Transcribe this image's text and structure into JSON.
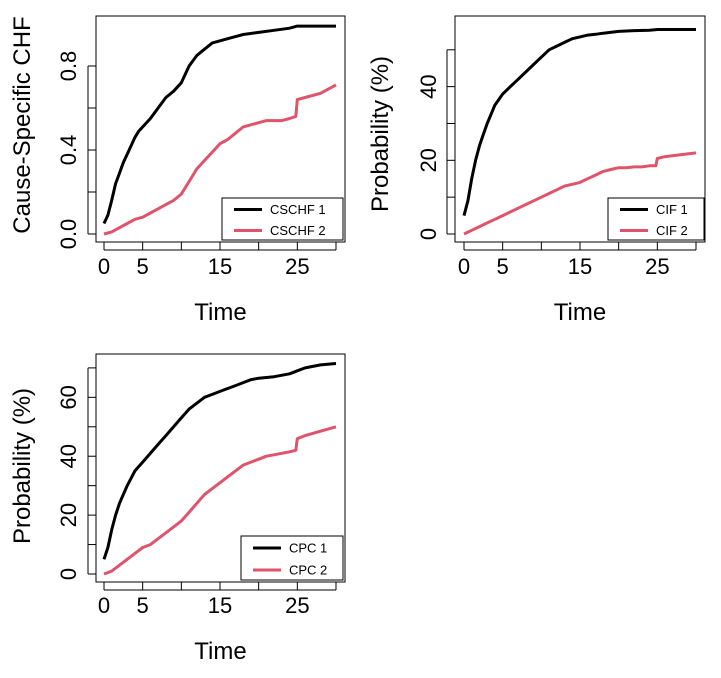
{
  "chart_data": [
    {
      "type": "line",
      "ylabel": "Cause-Specific CHF",
      "xlabel": "Time",
      "xlim": [
        0,
        30
      ],
      "ylim": [
        0,
        1
      ],
      "xticks": [
        0,
        5,
        10,
        15,
        20,
        25,
        30
      ],
      "xtick_labels": [
        "0",
        "5",
        "",
        "15",
        "",
        "25",
        ""
      ],
      "yticks": [
        0,
        0.2,
        0.4,
        0.6,
        0.8
      ],
      "ytick_labels": [
        "0.0",
        "",
        "0.4",
        "",
        "0.8"
      ],
      "legend_position": "bottom-right",
      "series": [
        {
          "name": "CSCHF 1",
          "color": "#000000",
          "x": [
            0,
            0.5,
            1,
            1.5,
            2,
            2.5,
            3,
            3.5,
            4,
            4.5,
            5,
            6,
            7,
            8,
            9,
            10,
            10.5,
            11,
            12,
            13,
            14,
            15,
            16,
            17,
            18,
            20,
            22,
            24,
            25,
            26,
            28,
            30
          ],
          "y": [
            0.05,
            0.09,
            0.16,
            0.24,
            0.29,
            0.34,
            0.38,
            0.42,
            0.46,
            0.49,
            0.51,
            0.55,
            0.6,
            0.65,
            0.68,
            0.72,
            0.76,
            0.8,
            0.85,
            0.88,
            0.91,
            0.92,
            0.93,
            0.94,
            0.95,
            0.96,
            0.97,
            0.98,
            0.99,
            0.99,
            0.99,
            0.99
          ]
        },
        {
          "name": "CSCHF 2",
          "color": "#DF536B",
          "x": [
            0,
            1,
            2,
            3,
            4,
            5,
            6,
            7,
            8,
            9,
            10,
            11,
            12,
            13,
            14,
            15,
            16,
            17,
            18,
            19,
            20,
            21,
            22,
            23,
            24,
            24.8,
            25,
            26,
            28,
            30
          ],
          "y": [
            0.0,
            0.01,
            0.03,
            0.05,
            0.07,
            0.08,
            0.1,
            0.12,
            0.14,
            0.16,
            0.19,
            0.25,
            0.31,
            0.35,
            0.39,
            0.43,
            0.45,
            0.48,
            0.51,
            0.52,
            0.53,
            0.54,
            0.54,
            0.54,
            0.55,
            0.56,
            0.64,
            0.65,
            0.67,
            0.71
          ]
        }
      ]
    },
    {
      "type": "line",
      "ylabel": "Probability (%)",
      "xlabel": "Time",
      "xlim": [
        0,
        30
      ],
      "ylim": [
        0,
        57
      ],
      "xticks": [
        0,
        5,
        10,
        15,
        20,
        25,
        30
      ],
      "xtick_labels": [
        "0",
        "5",
        "",
        "15",
        "",
        "25",
        ""
      ],
      "yticks": [
        0,
        10,
        20,
        30,
        40,
        50
      ],
      "ytick_labels": [
        "0",
        "",
        "20",
        "",
        "40",
        ""
      ],
      "legend_position": "bottom-right",
      "series": [
        {
          "name": "CIF 1",
          "color": "#000000",
          "x": [
            0,
            0.5,
            1,
            1.5,
            2,
            2.5,
            3,
            4,
            5,
            6,
            7,
            8,
            9,
            10,
            11,
            12,
            13,
            14,
            15,
            16,
            17,
            18,
            20,
            22,
            24,
            25,
            26,
            28,
            30
          ],
          "y": [
            5,
            9,
            15,
            20,
            24,
            27,
            30,
            35,
            38,
            40,
            42,
            44,
            46,
            48,
            50,
            51,
            52,
            53,
            53.5,
            54,
            54.2,
            54.5,
            55,
            55.2,
            55.3,
            55.5,
            55.5,
            55.5,
            55.5
          ]
        },
        {
          "name": "CIF 2",
          "color": "#DF536B",
          "x": [
            0,
            1,
            2,
            3,
            4,
            5,
            6,
            7,
            8,
            9,
            10,
            11,
            12,
            13,
            14,
            15,
            16,
            17,
            18,
            19,
            20,
            21,
            22,
            23,
            24,
            24.8,
            25,
            26,
            28,
            30
          ],
          "y": [
            0,
            1,
            2,
            3,
            4,
            5,
            6,
            7,
            8,
            9,
            10,
            11,
            12,
            13,
            13.5,
            14,
            15,
            16,
            17,
            17.5,
            18,
            18,
            18.2,
            18.2,
            18.5,
            18.5,
            20.5,
            21,
            21.5,
            22
          ]
        }
      ]
    },
    {
      "type": "line",
      "ylabel": "Probability (%)",
      "xlabel": "Time",
      "xlim": [
        0,
        30
      ],
      "ylim": [
        0,
        72
      ],
      "xticks": [
        0,
        5,
        10,
        15,
        20,
        25,
        30
      ],
      "xtick_labels": [
        "0",
        "5",
        "",
        "15",
        "",
        "25",
        ""
      ],
      "yticks": [
        0,
        10,
        20,
        30,
        40,
        50,
        60,
        70
      ],
      "ytick_labels": [
        "0",
        "",
        "20",
        "",
        "40",
        "",
        "60",
        ""
      ],
      "legend_position": "bottom-right",
      "series": [
        {
          "name": "CPC 1",
          "color": "#000000",
          "x": [
            0,
            0.5,
            1,
            1.5,
            2,
            2.5,
            3,
            4,
            5,
            6,
            7,
            8,
            9,
            10,
            11,
            12,
            13,
            14,
            15,
            16,
            17,
            18,
            19,
            20,
            22,
            24,
            25,
            26,
            28,
            30
          ],
          "y": [
            5,
            9,
            15,
            20,
            24,
            27,
            30,
            35,
            38,
            41,
            44,
            47,
            50,
            53,
            56,
            58,
            60,
            61,
            62,
            63,
            64,
            65,
            66,
            66.5,
            67,
            68,
            69,
            70,
            71,
            71.5
          ]
        },
        {
          "name": "CPC 2",
          "color": "#DF536B",
          "x": [
            0,
            1,
            2,
            3,
            4,
            5,
            6,
            7,
            8,
            9,
            10,
            11,
            12,
            13,
            14,
            15,
            16,
            17,
            18,
            19,
            20,
            21,
            22,
            23,
            24,
            24.8,
            25,
            26,
            28,
            30
          ],
          "y": [
            0,
            1,
            3,
            5,
            7,
            9,
            10,
            12,
            14,
            16,
            18,
            21,
            24,
            27,
            29,
            31,
            33,
            35,
            37,
            38,
            39,
            40,
            40.5,
            41,
            41.5,
            42,
            46,
            47,
            48.5,
            50
          ]
        }
      ]
    }
  ]
}
